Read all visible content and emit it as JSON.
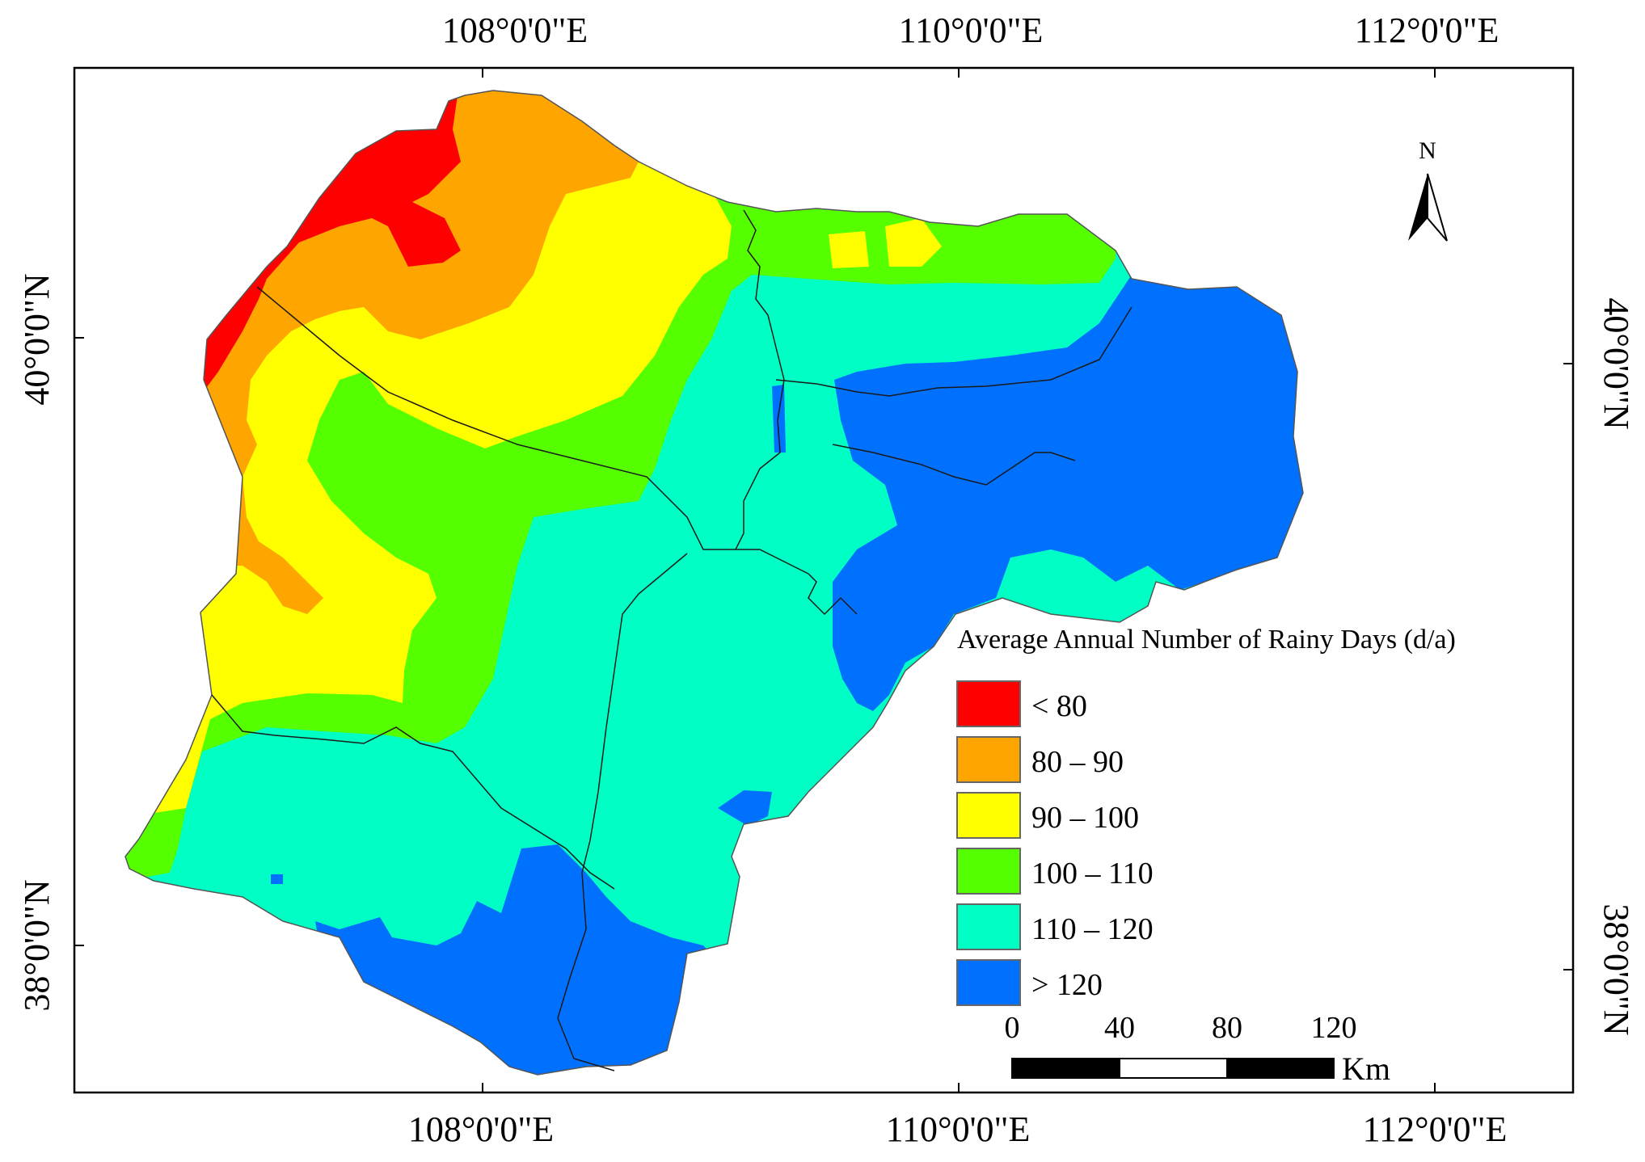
{
  "map": {
    "top_lon_labels": [
      "108°0'0\"E",
      "110°0'0\"E",
      "112°0'0\"E"
    ],
    "bottom_lon_labels": [
      "108°0'0\"E",
      "110°0'0\"E",
      "112°0'0\"E"
    ],
    "left_lat_labels": [
      "40°0'0\"N",
      "38°0'0\"N"
    ],
    "right_lat_labels": [
      "40°0'0\"N",
      "38°0'0\"N"
    ],
    "north_arrow_label": "N"
  },
  "legend": {
    "title": "Average Annual Number of Rainy Days (d/a)",
    "classes": [
      {
        "label": "<  80",
        "color": "#ff0000"
      },
      {
        "label": "80 – 90",
        "color": "#ffa500"
      },
      {
        "label": "90 – 100",
        "color": "#ffff00"
      },
      {
        "label": "100 – 110",
        "color": "#55ff00"
      },
      {
        "label": "110 – 120",
        "color": "#00ffc5"
      },
      {
        "label": "> 120",
        "color": "#0070ff"
      }
    ]
  },
  "scalebar": {
    "ticks": [
      "0",
      "40",
      "80",
      "120"
    ],
    "unit": "Km"
  }
}
